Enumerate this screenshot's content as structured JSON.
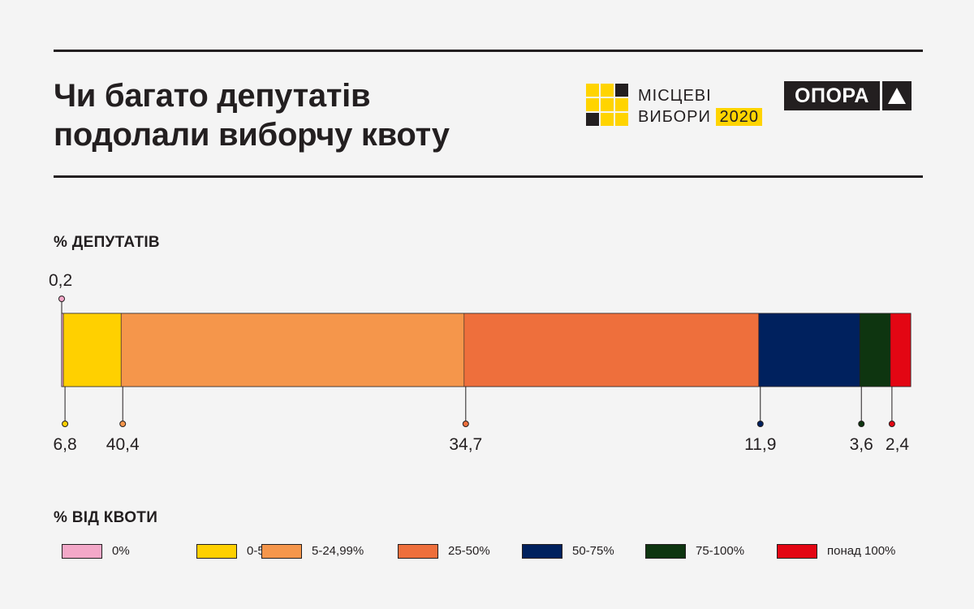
{
  "header": {
    "title_line1": "Чи багато депутатів",
    "title_line2": "подолали виборчу квоту",
    "logo_line1": "МІСЦЕВІ",
    "logo_line2": "ВИБОРИ",
    "logo_year": "2020",
    "brand": "ОПОРА"
  },
  "chart_data": {
    "type": "bar",
    "orientation": "horizontal-stacked",
    "ylabel": "% ДЕПУТАТІВ",
    "legend_title": "% ВІД КВОТИ",
    "legend_placement": "bottom",
    "xlim": [
      0,
      100
    ],
    "categories": [
      "0%",
      "0-5%",
      "5-24,99%",
      "25-50%",
      "50-75%",
      "75-100%",
      "понад 100%"
    ],
    "values": [
      0.2,
      6.8,
      40.4,
      34.7,
      11.9,
      3.6,
      2.4
    ],
    "data_labels": [
      "0,2",
      "6,8",
      "40,4",
      "34,7",
      "11,9",
      "3,6",
      "2,4"
    ],
    "colors": [
      "#f3a8c8",
      "#ffd000",
      "#f5964b",
      "#ee6f3c",
      "#00215e",
      "#0e3510",
      "#e30613"
    ]
  }
}
